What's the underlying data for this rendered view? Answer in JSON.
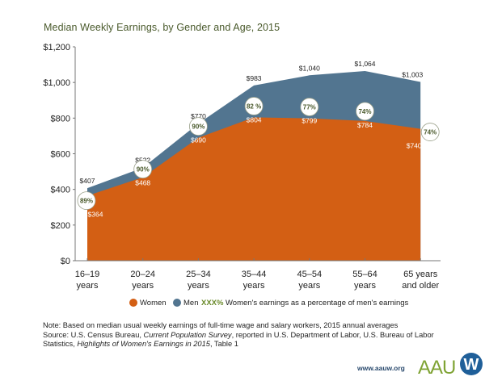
{
  "chart_data": {
    "type": "area",
    "title": "Median Weekly Earnings, by Gender and Age, 2015",
    "xlabel": "",
    "ylabel": "",
    "ylim": [
      0,
      1200
    ],
    "yticks": [
      0,
      200,
      400,
      600,
      800,
      1000,
      1200
    ],
    "ytick_labels": [
      "$0",
      "$200",
      "$400",
      "$600",
      "$800",
      "$1,000",
      "$1,200"
    ],
    "categories": [
      [
        "16–19",
        "years"
      ],
      [
        "20–24",
        "years"
      ],
      [
        "25–34",
        "years"
      ],
      [
        "35–44",
        "years"
      ],
      [
        "45–54",
        "years"
      ],
      [
        "55–64",
        "years"
      ],
      [
        "65 years",
        "and older"
      ]
    ],
    "series": [
      {
        "name": "Men",
        "color": "#527590",
        "values": [
          407,
          522,
          770,
          983,
          1040,
          1064,
          1003
        ],
        "labels": [
          "$407",
          "$522",
          "$770",
          "$983",
          "$1,040",
          "$1,064",
          "$1,003"
        ]
      },
      {
        "name": "Women",
        "color": "#d35f14",
        "values": [
          364,
          468,
          690,
          804,
          799,
          784,
          740
        ],
        "labels": [
          "$364",
          "$468",
          "$690",
          "$804",
          "$799",
          "$784",
          "$740"
        ]
      }
    ],
    "ratio_labels": [
      "89%",
      "90%",
      "90%",
      "82 %",
      "77%",
      "74%",
      "74%"
    ],
    "ratio_color": "#4a5a2c",
    "legend": {
      "placement": "bottom",
      "items": [
        {
          "label": "Women",
          "color": "#d35f14",
          "marker": "circle"
        },
        {
          "label": "Men",
          "color": "#527590",
          "marker": "circle"
        },
        {
          "label": "XXX%",
          "color": "#6a8a2a",
          "marker": "text",
          "description": "Women's earnings as a percentage of men's earnings"
        }
      ]
    },
    "grid": false
  },
  "note": {
    "line1": "Note: Based on median usual weekly earnings of full-time wage and salary workers, 2015 annual averages",
    "line2_prefix": "Source: U.S. Census Bureau, ",
    "line2_italic": "Current Population Survey",
    "line2_suffix": ", reported in U.S. Department of Labor, U.S. Bureau of Labor",
    "line3_prefix": "Statistics, ",
    "line3_italic": "Highlights of Women's Earnings in 2015",
    "line3_suffix": ", Table 1"
  },
  "footer": {
    "url": "www.aauw.org",
    "logo_text": "AAU",
    "logo_mark": "W"
  }
}
